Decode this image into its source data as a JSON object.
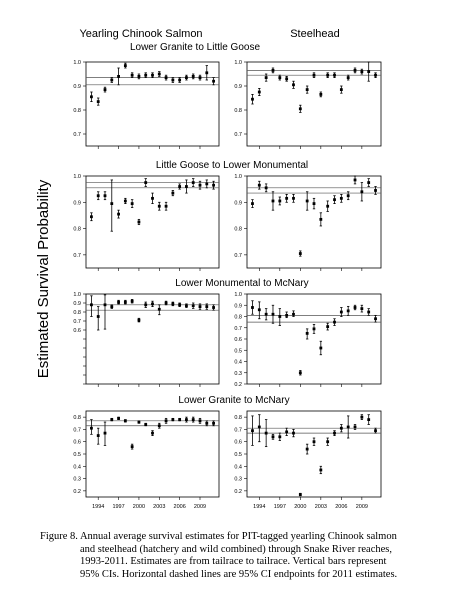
{
  "figure": {
    "ylabel": "Estimated Survival Probability",
    "column_titles": [
      "Yearling Chinook Salmon",
      "Steelhead"
    ],
    "x_tick_labels": [
      "1994",
      "1997",
      "2000",
      "2003",
      "2006",
      "2009"
    ],
    "caption_lines": [
      "Figure 8.  Annual average survival estimates for PIT-tagged yearling Chinook salmon",
      "and steelhead (hatchery and wild combined) through Snake River reaches,",
      "1993-2011.  Estimates are from tailrace to tailrace.  Vertical bars represent",
      "95% CIs.  Horizontal dashed lines are 95% CI endpoints for 2011 estimates."
    ]
  },
  "chart_data": [
    {
      "type": "scatter",
      "title": "Lower Granite to Little Goose",
      "panels": [
        {
          "name": "Yearling Chinook Salmon",
          "ylim": [
            0.65,
            1.0
          ],
          "ticks": [
            0.7,
            0.8,
            0.9,
            1.0
          ],
          "tick_labels": [
            "0.7",
            "0.8",
            "0.9",
            "1.0"
          ],
          "x": [
            1993,
            1994,
            1995,
            1996,
            1997,
            1998,
            1999,
            2000,
            2001,
            2002,
            2003,
            2004,
            2005,
            2006,
            2007,
            2008,
            2009,
            2010,
            2011
          ],
          "y": [
            0.855,
            0.835,
            0.885,
            0.925,
            0.94,
            0.985,
            0.945,
            0.94,
            0.945,
            0.945,
            0.95,
            0.935,
            0.925,
            0.925,
            0.935,
            0.94,
            0.935,
            0.955,
            0.92
          ],
          "lo": [
            0.835,
            0.82,
            0.875,
            0.915,
            0.905,
            0.975,
            0.935,
            0.93,
            0.935,
            0.935,
            0.94,
            0.925,
            0.915,
            0.915,
            0.925,
            0.93,
            0.925,
            0.925,
            0.905
          ],
          "hi": [
            0.875,
            0.85,
            0.895,
            0.935,
            0.975,
            0.995,
            0.955,
            0.95,
            0.955,
            0.955,
            0.96,
            0.945,
            0.935,
            0.935,
            0.945,
            0.95,
            0.945,
            0.985,
            0.935
          ],
          "ci_2011": [
            0.905,
            0.935
          ]
        },
        {
          "name": "Steelhead",
          "ylim": [
            0.65,
            1.0
          ],
          "ticks": [
            0.7,
            0.8,
            0.9,
            1.0
          ],
          "tick_labels": [
            "0.7",
            "0.8",
            "0.9",
            "1.0"
          ],
          "x": [
            1993,
            1994,
            1995,
            1996,
            1997,
            1998,
            1999,
            2000,
            2001,
            2002,
            2003,
            2004,
            2005,
            2006,
            2007,
            2008,
            2009,
            2010,
            2011
          ],
          "y": [
            0.845,
            0.875,
            0.935,
            0.965,
            0.935,
            0.93,
            0.905,
            0.805,
            0.885,
            0.945,
            0.865,
            0.945,
            0.945,
            0.885,
            0.935,
            0.965,
            0.96,
            0.96,
            0.945
          ],
          "lo": [
            0.825,
            0.86,
            0.92,
            0.955,
            0.925,
            0.92,
            0.89,
            0.79,
            0.87,
            0.935,
            0.855,
            0.935,
            0.935,
            0.87,
            0.925,
            0.955,
            0.95,
            0.92,
            0.935
          ],
          "hi": [
            0.865,
            0.89,
            0.95,
            0.975,
            0.945,
            0.94,
            0.92,
            0.82,
            0.9,
            0.955,
            0.875,
            0.955,
            0.955,
            0.9,
            0.945,
            0.975,
            0.97,
            1.0,
            0.955
          ],
          "ci_2011": [
            0.945,
            0.965
          ]
        }
      ]
    },
    {
      "type": "scatter",
      "title": "Little Goose to Lower Monumental",
      "panels": [
        {
          "name": "Yearling Chinook Salmon",
          "ylim": [
            0.65,
            1.0
          ],
          "ticks": [
            0.7,
            0.8,
            0.9,
            1.0
          ],
          "tick_labels": [
            "0.7",
            "0.8",
            "0.9",
            "1.0"
          ],
          "x": [
            1993,
            1994,
            1995,
            1996,
            1997,
            1998,
            1999,
            2000,
            2001,
            2002,
            2003,
            2004,
            2005,
            2006,
            2007,
            2008,
            2009,
            2010,
            2011
          ],
          "y": [
            0.845,
            0.925,
            0.925,
            0.895,
            0.855,
            0.905,
            0.895,
            0.825,
            0.975,
            0.915,
            0.885,
            0.885,
            0.935,
            0.96,
            0.96,
            0.975,
            0.965,
            0.97,
            0.965
          ],
          "lo": [
            0.83,
            0.91,
            0.91,
            0.79,
            0.84,
            0.895,
            0.88,
            0.815,
            0.96,
            0.895,
            0.87,
            0.87,
            0.925,
            0.95,
            0.935,
            0.96,
            0.95,
            0.955,
            0.95
          ],
          "hi": [
            0.86,
            0.94,
            0.94,
            0.985,
            0.87,
            0.915,
            0.91,
            0.835,
            0.99,
            0.935,
            0.9,
            0.9,
            0.945,
            0.97,
            0.985,
            0.99,
            0.98,
            0.985,
            0.98
          ],
          "ci_2011": [
            0.955,
            0.975
          ]
        },
        {
          "name": "Steelhead",
          "ylim": [
            0.65,
            1.0
          ],
          "ticks": [
            0.7,
            0.8,
            0.9,
            1.0
          ],
          "tick_labels": [
            "0.7",
            "0.8",
            "0.9",
            "1.0"
          ],
          "x": [
            1993,
            1994,
            1995,
            1996,
            1997,
            1998,
            1999,
            2000,
            2001,
            2002,
            2003,
            2004,
            2005,
            2006,
            2007,
            2008,
            2009,
            2010,
            2011
          ],
          "y": [
            0.895,
            0.965,
            0.955,
            0.905,
            0.905,
            0.915,
            0.915,
            0.705,
            0.905,
            0.895,
            0.835,
            0.885,
            0.91,
            0.915,
            0.925,
            0.985,
            0.94,
            0.975,
            0.945
          ],
          "lo": [
            0.88,
            0.95,
            0.94,
            0.87,
            0.89,
            0.9,
            0.9,
            0.695,
            0.87,
            0.875,
            0.81,
            0.865,
            0.895,
            0.9,
            0.91,
            0.97,
            0.905,
            0.96,
            0.93
          ],
          "hi": [
            0.91,
            0.98,
            0.97,
            0.94,
            0.92,
            0.93,
            0.93,
            0.715,
            0.94,
            0.915,
            0.86,
            0.905,
            0.925,
            0.93,
            0.94,
            1.0,
            0.975,
            0.99,
            0.96
          ],
          "ci_2011": [
            0.935,
            0.955
          ]
        }
      ]
    },
    {
      "type": "scatter",
      "title": "Lower Monumental to McNary",
      "panels": [
        {
          "name": "Yearling Chinook Salmon",
          "ylim": [
            0.0,
            1.0
          ],
          "ticks": [
            0.0,
            0.1,
            0.2,
            0.3,
            0.4,
            0.5,
            0.6,
            0.7,
            0.8,
            0.9,
            1.0
          ],
          "tick_labels": [
            "",
            "",
            "",
            "",
            "",
            "",
            "0.6",
            "0.7",
            "0.8",
            "0.9",
            "1.0"
          ],
          "x": [
            1993,
            1994,
            1995,
            1996,
            1997,
            1998,
            1999,
            2000,
            2001,
            2002,
            2003,
            2004,
            2005,
            2006,
            2007,
            2008,
            2009,
            2010,
            2011
          ],
          "y": [
            0.88,
            0.75,
            0.88,
            0.86,
            0.91,
            0.91,
            0.92,
            0.71,
            0.88,
            0.89,
            0.83,
            0.9,
            0.89,
            0.88,
            0.87,
            0.87,
            0.86,
            0.86,
            0.85
          ],
          "lo": [
            0.75,
            0.6,
            0.61,
            0.84,
            0.89,
            0.89,
            0.9,
            0.69,
            0.85,
            0.86,
            0.77,
            0.88,
            0.87,
            0.86,
            0.85,
            0.84,
            0.83,
            0.83,
            0.82
          ],
          "hi": [
            0.98,
            0.86,
            0.99,
            0.88,
            0.93,
            0.93,
            0.94,
            0.73,
            0.91,
            0.92,
            0.88,
            0.92,
            0.91,
            0.9,
            0.89,
            0.9,
            0.89,
            0.89,
            0.88
          ],
          "ci_2011": [
            0.82,
            0.88
          ]
        },
        {
          "name": "Steelhead",
          "ylim": [
            0.2,
            1.0
          ],
          "ticks": [
            0.2,
            0.3,
            0.4,
            0.5,
            0.6,
            0.7,
            0.8,
            0.9,
            1.0
          ],
          "tick_labels": [
            "0.2",
            "0.3",
            "0.4",
            "0.5",
            "0.6",
            "0.7",
            "0.8",
            "0.9",
            "1.0"
          ],
          "x": [
            1993,
            1994,
            1995,
            1996,
            1997,
            1998,
            1999,
            2000,
            2001,
            2002,
            2003,
            2004,
            2005,
            2006,
            2007,
            2008,
            2009,
            2010,
            2011
          ],
          "y": [
            0.88,
            0.86,
            0.82,
            0.82,
            0.8,
            0.81,
            0.82,
            0.3,
            0.65,
            0.69,
            0.52,
            0.71,
            0.75,
            0.84,
            0.85,
            0.88,
            0.87,
            0.84,
            0.78
          ],
          "lo": [
            0.82,
            0.78,
            0.77,
            0.74,
            0.72,
            0.79,
            0.8,
            0.28,
            0.6,
            0.65,
            0.46,
            0.68,
            0.72,
            0.8,
            0.81,
            0.86,
            0.84,
            0.81,
            0.75
          ],
          "hi": [
            0.94,
            0.93,
            0.87,
            0.9,
            0.87,
            0.84,
            0.85,
            0.32,
            0.69,
            0.73,
            0.58,
            0.74,
            0.78,
            0.88,
            0.89,
            0.9,
            0.9,
            0.87,
            0.81
          ],
          "ci_2011": [
            0.75,
            0.81
          ]
        }
      ]
    },
    {
      "type": "scatter",
      "title": "Lower Granite to McNary",
      "panels": [
        {
          "name": "Yearling Chinook Salmon",
          "ylim": [
            0.15,
            0.85
          ],
          "ticks": [
            0.2,
            0.3,
            0.4,
            0.5,
            0.6,
            0.7,
            0.8
          ],
          "tick_labels": [
            "0.2",
            "0.3",
            "0.4",
            "0.5",
            "0.6",
            "0.7",
            "0.8"
          ],
          "x": [
            1993,
            1994,
            1995,
            1996,
            1997,
            1998,
            1999,
            2000,
            2001,
            2002,
            2003,
            2004,
            2005,
            2006,
            2007,
            2008,
            2009,
            2010,
            2011
          ],
          "y": [
            0.71,
            0.65,
            0.67,
            0.78,
            0.79,
            0.77,
            0.56,
            0.76,
            0.74,
            0.67,
            0.73,
            0.77,
            0.78,
            0.78,
            0.78,
            0.78,
            0.77,
            0.75,
            0.75
          ],
          "lo": [
            0.66,
            0.58,
            0.57,
            0.77,
            0.78,
            0.76,
            0.54,
            0.75,
            0.73,
            0.65,
            0.71,
            0.75,
            0.77,
            0.77,
            0.76,
            0.76,
            0.75,
            0.73,
            0.73
          ],
          "hi": [
            0.78,
            0.71,
            0.76,
            0.79,
            0.8,
            0.78,
            0.58,
            0.77,
            0.75,
            0.69,
            0.75,
            0.79,
            0.79,
            0.79,
            0.8,
            0.8,
            0.79,
            0.77,
            0.77
          ],
          "ci_2011": [
            0.73,
            0.77
          ]
        },
        {
          "name": "Steelhead",
          "ylim": [
            0.15,
            0.85
          ],
          "ticks": [
            0.2,
            0.3,
            0.4,
            0.5,
            0.6,
            0.7,
            0.8
          ],
          "tick_labels": [
            "0.2",
            "0.3",
            "0.4",
            "0.5",
            "0.6",
            "0.7",
            "0.8"
          ],
          "x": [
            1993,
            1994,
            1995,
            1996,
            1997,
            1998,
            1999,
            2000,
            2001,
            2002,
            2003,
            2004,
            2005,
            2006,
            2007,
            2008,
            2009,
            2010,
            2011
          ],
          "y": [
            0.69,
            0.72,
            0.67,
            0.64,
            0.64,
            0.68,
            0.67,
            0.17,
            0.54,
            0.6,
            0.37,
            0.6,
            0.67,
            0.71,
            0.72,
            0.72,
            0.8,
            0.78,
            0.69
          ],
          "lo": [
            0.57,
            0.6,
            0.56,
            0.62,
            0.61,
            0.65,
            0.64,
            0.16,
            0.5,
            0.57,
            0.34,
            0.57,
            0.65,
            0.68,
            0.63,
            0.7,
            0.78,
            0.74,
            0.67
          ],
          "hi": [
            0.81,
            0.82,
            0.78,
            0.66,
            0.67,
            0.71,
            0.7,
            0.18,
            0.58,
            0.63,
            0.4,
            0.63,
            0.69,
            0.74,
            0.81,
            0.74,
            0.82,
            0.82,
            0.71
          ],
          "ci_2011": [
            0.67,
            0.71
          ]
        }
      ]
    }
  ]
}
